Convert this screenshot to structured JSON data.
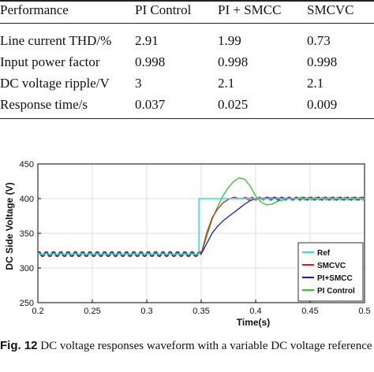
{
  "table": {
    "headers": [
      "Performance",
      "PI Control",
      "PI + SMCC",
      "SMCVC"
    ],
    "rows": [
      [
        "Line current THD/%",
        "2.91",
        "1.99",
        "0.73"
      ],
      [
        "Input power factor",
        "0.998",
        "0.998",
        "0.998"
      ],
      [
        "DC voltage ripple/V",
        "3",
        "2.1",
        "2.1"
      ],
      [
        "Response time/s",
        "0.037",
        "0.025",
        "0.009"
      ]
    ]
  },
  "chart_data": {
    "type": "line",
    "xlabel": "Time(s)",
    "ylabel": "DC Side Voltage (V)",
    "xlim": [
      0.2,
      0.5
    ],
    "ylim": [
      250,
      450
    ],
    "xticks": [
      "0.2",
      "0.25",
      "0.3",
      "0.35",
      "0.4",
      "0.45",
      "0.5"
    ],
    "yticks": [
      "250",
      "300",
      "350",
      "400",
      "450"
    ],
    "grid": true,
    "legend_position": "bottom-right",
    "series": [
      {
        "name": "Ref",
        "color": "#33dddd",
        "x": [
          0.2,
          0.348,
          0.348,
          0.5
        ],
        "y": [
          320,
          320,
          400,
          400
        ]
      },
      {
        "name": "SMCVC",
        "color": "#d81b1b",
        "x": [
          0.35,
          0.355,
          0.36,
          0.365,
          0.37,
          0.375,
          0.38,
          0.385,
          0.39,
          0.4,
          0.42,
          0.45,
          0.5
        ],
        "y": [
          320,
          350,
          372,
          385,
          394,
          399,
          402,
          400,
          401,
          400,
          400,
          400,
          400
        ]
      },
      {
        "name": "PI+SMCC",
        "color": "#1a1acc",
        "x": [
          0.35,
          0.355,
          0.36,
          0.365,
          0.37,
          0.375,
          0.38,
          0.385,
          0.39,
          0.395,
          0.4,
          0.41,
          0.45,
          0.5
        ],
        "y": [
          320,
          335,
          350,
          360,
          368,
          374,
          380,
          386,
          392,
          397,
          400,
          401,
          400,
          400
        ]
      },
      {
        "name": "PI Control",
        "color": "#22cc22",
        "x": [
          0.35,
          0.355,
          0.36,
          0.365,
          0.37,
          0.375,
          0.38,
          0.385,
          0.39,
          0.395,
          0.4,
          0.405,
          0.41,
          0.415,
          0.42,
          0.43,
          0.44,
          0.45,
          0.5
        ],
        "y": [
          320,
          345,
          370,
          388,
          404,
          416,
          425,
          430,
          428,
          418,
          404,
          395,
          391,
          392,
          396,
          400,
          401,
          400,
          400
        ]
      }
    ]
  },
  "caption": {
    "label": "Fig. 12",
    "text": "DC voltage responses waveform with a variable DC voltage reference"
  }
}
